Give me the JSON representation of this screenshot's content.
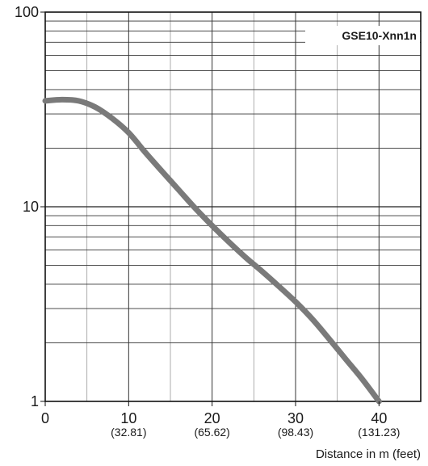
{
  "chart_data": {
    "type": "line",
    "title": "",
    "xlabel": "Distance in m (feet)",
    "ylabel": "",
    "xlim": [
      0,
      45
    ],
    "ylim": [
      1,
      100
    ],
    "y_scale": "log",
    "grid": true,
    "x_ticks": [
      {
        "value": 0,
        "label": "0",
        "sublabel": ""
      },
      {
        "value": 10,
        "label": "10",
        "sublabel": "(32.81)"
      },
      {
        "value": 20,
        "label": "20",
        "sublabel": "(65.62)"
      },
      {
        "value": 30,
        "label": "30",
        "sublabel": "(98.43)"
      },
      {
        "value": 40,
        "label": "40",
        "sublabel": "(131.23)"
      }
    ],
    "y_ticks": [
      {
        "value": 1,
        "label": "1"
      },
      {
        "value": 10,
        "label": "10"
      },
      {
        "value": 100,
        "label": "100"
      }
    ],
    "series": [
      {
        "name": "GSE10-Xnn1n",
        "color": "#7a7a7a",
        "points": [
          [
            0,
            35
          ],
          [
            2,
            35.5
          ],
          [
            4,
            35
          ],
          [
            6,
            32.5
          ],
          [
            8,
            28.5
          ],
          [
            10,
            24
          ],
          [
            12,
            19
          ],
          [
            14,
            15.2
          ],
          [
            16,
            12.2
          ],
          [
            18,
            9.8
          ],
          [
            20,
            8.0
          ],
          [
            22,
            6.6
          ],
          [
            24,
            5.5
          ],
          [
            26,
            4.65
          ],
          [
            28,
            3.9
          ],
          [
            30,
            3.25
          ],
          [
            32,
            2.65
          ],
          [
            34,
            2.1
          ],
          [
            36,
            1.65
          ],
          [
            38,
            1.3
          ],
          [
            40,
            1.0
          ]
        ]
      }
    ]
  }
}
